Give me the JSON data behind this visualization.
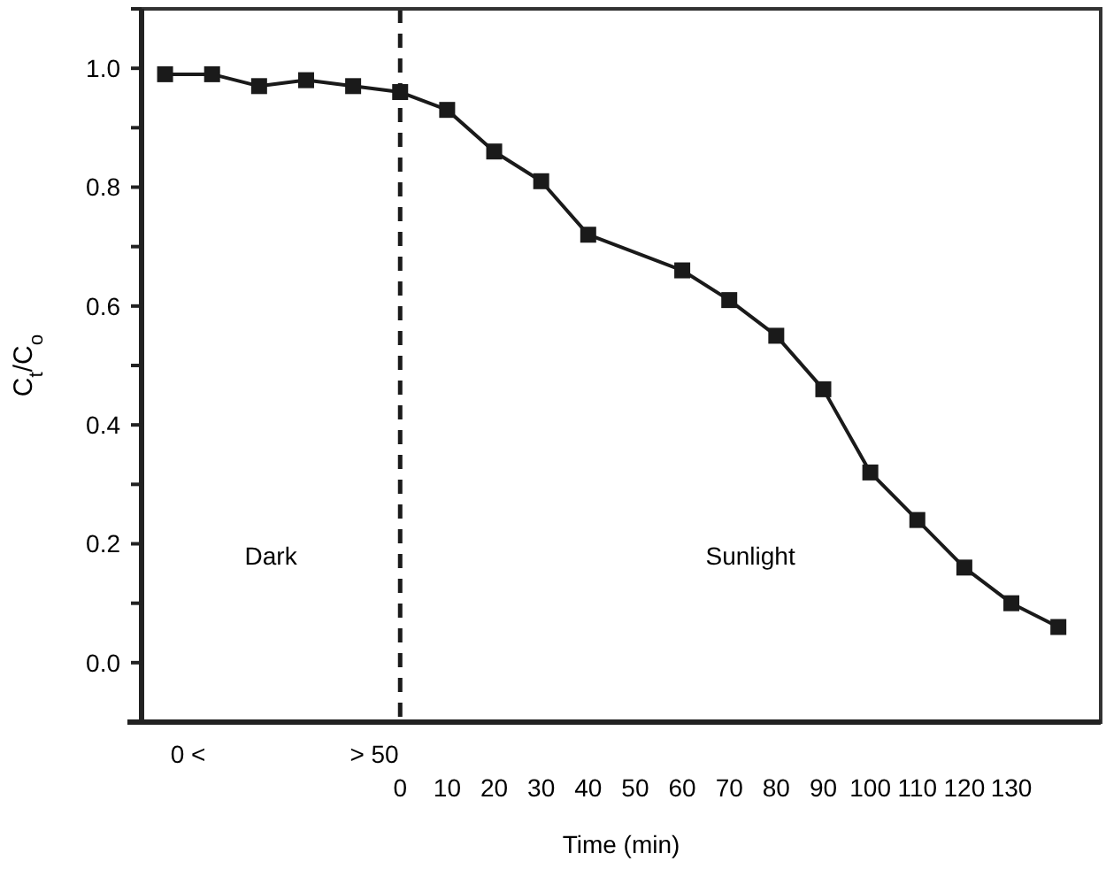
{
  "chart_data": {
    "type": "line",
    "xlabel": "Time (min)",
    "ylabel": "C$_{t}$/C$_{o}$",
    "x": [
      -50,
      -40,
      -30,
      -20,
      -10,
      0,
      10,
      20,
      30,
      40,
      60,
      70,
      80,
      90,
      100,
      110,
      120,
      130,
      140
    ],
    "values": [
      0.99,
      0.99,
      0.97,
      0.98,
      0.97,
      0.96,
      0.93,
      0.86,
      0.81,
      0.72,
      0.66,
      0.61,
      0.55,
      0.46,
      0.32,
      0.24,
      0.16,
      0.1,
      0.06
    ],
    "color": "#1a1a1a",
    "marker": "square",
    "line_style": "solid",
    "xlim": [
      -55,
      149
    ],
    "ylim": [
      -0.1,
      1.1
    ],
    "xticks": [
      0,
      10,
      20,
      30,
      40,
      50,
      60,
      70,
      80,
      90,
      100,
      110,
      120,
      130
    ],
    "yticks": [
      {
        "value": -0.1,
        "label": null
      },
      {
        "value": 0,
        "label": "0.0"
      },
      {
        "value": 0.1,
        "label": null
      },
      0.2,
      {
        "value": 0.3,
        "label": null
      },
      0.4,
      {
        "value": 0.5,
        "label": null
      },
      0.6,
      {
        "value": 0.7,
        "label": null
      },
      0.8,
      {
        "value": 0.9,
        "label": null
      },
      {
        "value": 1,
        "label": "1.0"
      },
      {
        "value": 1.1,
        "label": null
      }
    ],
    "ref_lines": [
      {
        "axis": "x",
        "value": 0,
        "label": null,
        "color": "#1a1a1a",
        "line_style": "dashed"
      }
    ],
    "annotations": [
      "Dark",
      "Sunlight",
      "0 <",
      "> 50"
    ],
    "grid": false
  }
}
